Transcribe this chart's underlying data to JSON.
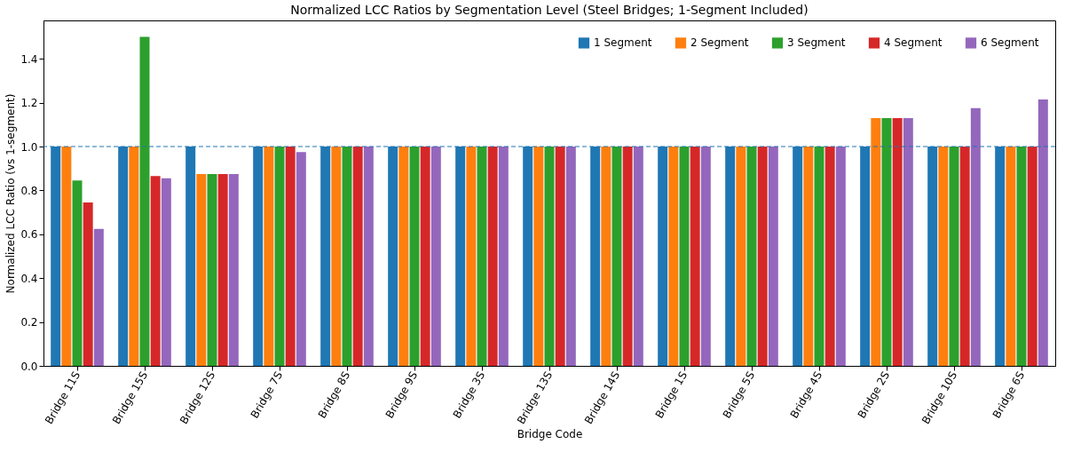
{
  "chart_data": {
    "type": "bar",
    "title": "Normalized LCC Ratios by Segmentation Level (Steel Bridges; 1-Segment Included)",
    "xlabel": "Bridge Code",
    "ylabel": "Normalized LCC Ratio (vs 1-segment)",
    "categories": [
      "Bridge 11S",
      "Bridge 15S",
      "Bridge 12S",
      "Bridge 7S",
      "Bridge 8S",
      "Bridge 9S",
      "Bridge 3S",
      "Bridge 13S",
      "Bridge 14S",
      "Bridge 1S",
      "Bridge 5S",
      "Bridge 4S",
      "Bridge 2S",
      "Bridge 10S",
      "Bridge 6S"
    ],
    "series": [
      {
        "name": "1 Segment",
        "color": "#1f77b4",
        "values": [
          1,
          1,
          1,
          1,
          1,
          1,
          1,
          1,
          1,
          1,
          1,
          1,
          1,
          1,
          1
        ]
      },
      {
        "name": "2 Segment",
        "color": "#ff7f0e",
        "values": [
          1,
          1,
          0.875,
          1,
          1,
          1,
          1,
          1,
          1,
          1,
          1,
          1,
          1.13,
          1,
          1
        ]
      },
      {
        "name": "3 Segment",
        "color": "#2ca02c",
        "values": [
          0.845,
          1.5,
          0.875,
          1,
          1,
          1,
          1,
          1,
          1,
          1,
          1,
          1,
          1.13,
          1,
          1
        ]
      },
      {
        "name": "4 Segment",
        "color": "#d62728",
        "values": [
          0.745,
          0.865,
          0.875,
          1,
          1,
          1,
          1,
          1,
          1,
          1,
          1,
          1,
          1.13,
          1,
          1
        ]
      },
      {
        "name": "6 Segment",
        "color": "#9467bd",
        "values": [
          0.625,
          0.855,
          0.875,
          0.975,
          1,
          1,
          1,
          1,
          1,
          1,
          1,
          1,
          1.13,
          1.175,
          1.215
        ]
      }
    ],
    "ylim": [
      0,
      1.575
    ],
    "yticks": [
      {
        "value": 0,
        "label": "0.0"
      },
      0.2,
      0.4,
      0.6,
      0.8,
      {
        "value": 1,
        "label": "1.0"
      },
      1.2,
      1.4
    ],
    "ref_lines": [
      {
        "axis": "y",
        "value": 1.0,
        "color": "#1f77b4",
        "line_style": "dashed"
      }
    ],
    "legend": "top right",
    "grid": false
  }
}
